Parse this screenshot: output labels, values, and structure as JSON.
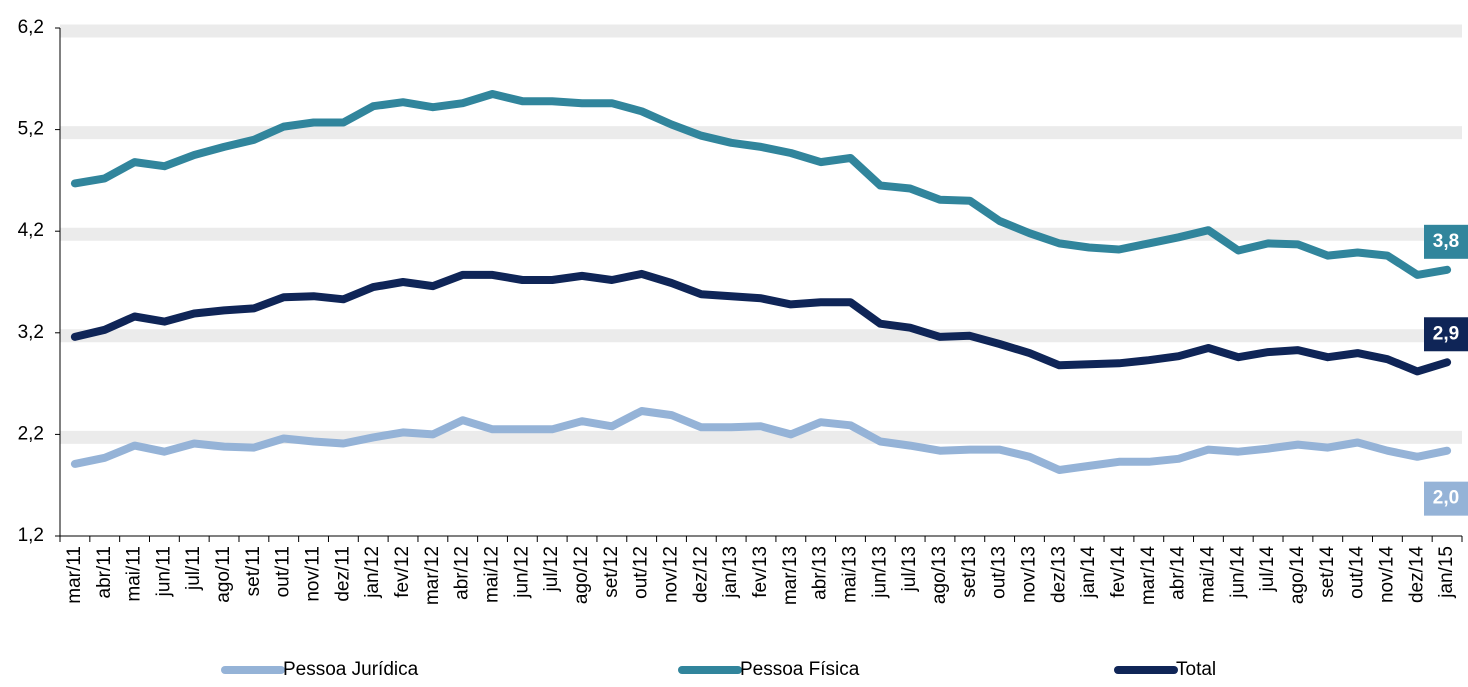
{
  "chart_data": {
    "type": "line",
    "categories": [
      "mar/11",
      "abr/11",
      "mai/11",
      "jun/11",
      "jul/11",
      "ago/11",
      "set/11",
      "out/11",
      "nov/11",
      "dez/11",
      "jan/12",
      "fev/12",
      "mar/12",
      "abr/12",
      "mai/12",
      "jun/12",
      "jul/12",
      "ago/12",
      "set/12",
      "out/12",
      "nov/12",
      "dez/12",
      "jan/13",
      "fev/13",
      "mar/13",
      "abr/13",
      "mai/13",
      "jun/13",
      "jul/13",
      "ago/13",
      "set/13",
      "out/13",
      "nov/13",
      "dez/13",
      "jan/14",
      "fev/14",
      "mar/14",
      "abr/14",
      "mai/14",
      "jun/14",
      "jul/14",
      "ago/14",
      "set/14",
      "out/14",
      "nov/14",
      "dez/14",
      "jan/15"
    ],
    "series": [
      {
        "name": "Pessoa Jurídica",
        "color": "#95b3d7",
        "last_label": "2,0",
        "values": [
          1.91,
          1.97,
          2.09,
          2.03,
          2.11,
          2.08,
          2.07,
          2.16,
          2.13,
          2.11,
          2.17,
          2.22,
          2.2,
          2.34,
          2.25,
          2.25,
          2.25,
          2.33,
          2.28,
          2.43,
          2.39,
          2.27,
          2.27,
          2.28,
          2.2,
          2.32,
          2.29,
          2.13,
          2.09,
          2.04,
          2.05,
          2.05,
          1.98,
          1.85,
          1.89,
          1.93,
          1.93,
          1.96,
          2.05,
          2.03,
          2.06,
          2.1,
          2.07,
          2.12,
          2.04,
          1.98,
          2.04
        ]
      },
      {
        "name": "Pessoa Física",
        "color": "#31859c",
        "last_label": "3,8",
        "values": [
          4.67,
          4.72,
          4.88,
          4.84,
          4.95,
          5.03,
          5.1,
          5.23,
          5.27,
          5.27,
          5.43,
          5.47,
          5.42,
          5.46,
          5.55,
          5.48,
          5.48,
          5.46,
          5.46,
          5.38,
          5.25,
          5.14,
          5.07,
          5.03,
          4.97,
          4.88,
          4.92,
          4.65,
          4.62,
          4.51,
          4.5,
          4.3,
          4.18,
          4.08,
          4.04,
          4.02,
          4.08,
          4.14,
          4.21,
          4.01,
          4.08,
          4.07,
          3.96,
          3.99,
          3.96,
          3.77,
          3.82
        ]
      },
      {
        "name": "Total",
        "color": "#0f2557",
        "last_label": "2,9",
        "values": [
          3.16,
          3.23,
          3.36,
          3.31,
          3.39,
          3.42,
          3.44,
          3.55,
          3.56,
          3.53,
          3.65,
          3.7,
          3.66,
          3.77,
          3.77,
          3.72,
          3.72,
          3.76,
          3.72,
          3.78,
          3.69,
          3.58,
          3.56,
          3.54,
          3.48,
          3.5,
          3.5,
          3.29,
          3.25,
          3.16,
          3.17,
          3.09,
          3.0,
          2.88,
          2.89,
          2.9,
          2.93,
          2.97,
          3.05,
          2.96,
          3.01,
          3.03,
          2.96,
          3.0,
          2.94,
          2.82,
          2.91
        ]
      }
    ],
    "ylim": [
      1.2,
      6.2
    ],
    "yticks": [
      {
        "value": 1.2,
        "label": "1,2"
      },
      {
        "value": 2.2,
        "label": "2,2"
      },
      {
        "value": 3.2,
        "label": "3,2"
      },
      {
        "value": 4.2,
        "label": "4,2"
      },
      {
        "value": 5.2,
        "label": "5,2"
      },
      {
        "value": 6.2,
        "label": "6,2"
      }
    ],
    "grid": true,
    "legend": "bottom"
  }
}
